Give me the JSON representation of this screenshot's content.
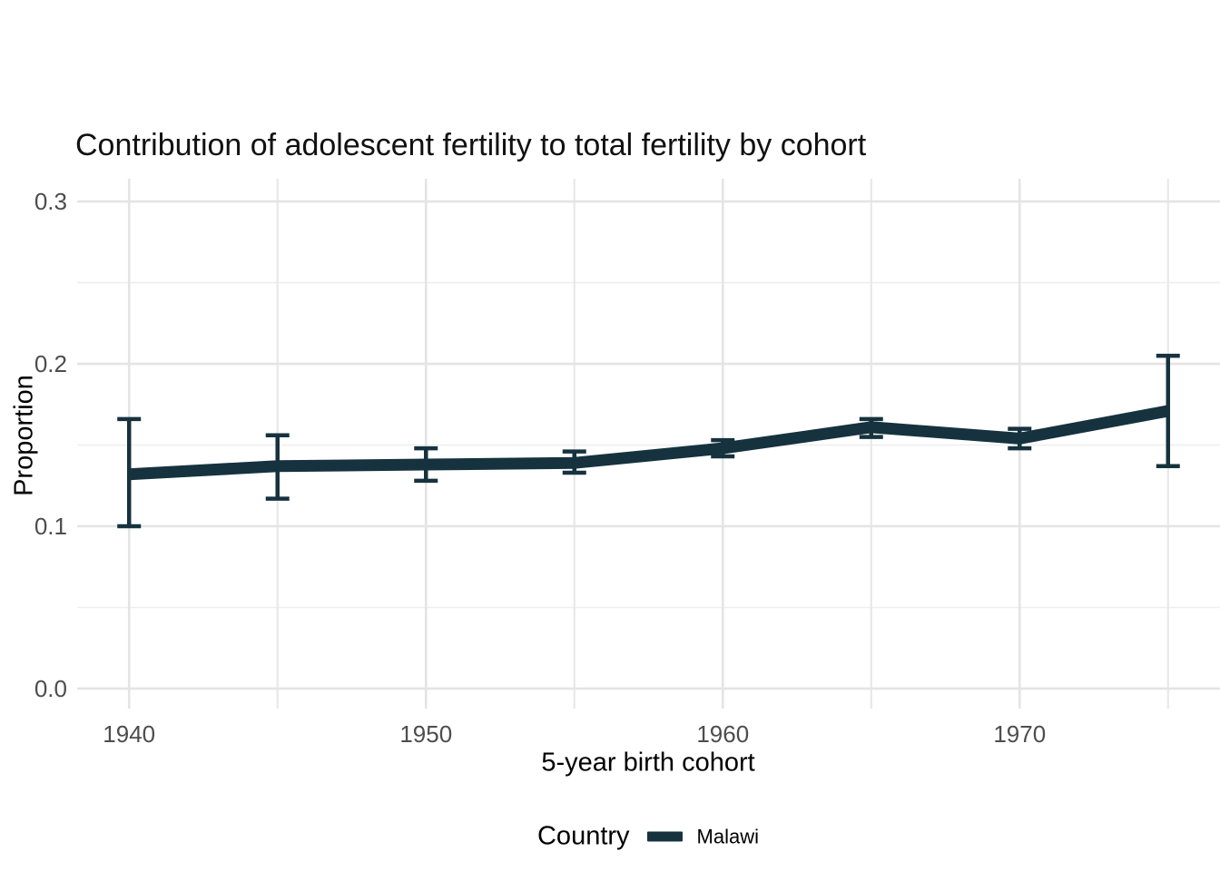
{
  "title": "Contribution of adolescent fertility to total fertility by cohort",
  "x_axis": {
    "label": "5-year birth cohort",
    "tick_labels": [
      "1940",
      "1950",
      "1960",
      "1970"
    ]
  },
  "y_axis": {
    "label": "Proportion",
    "tick_labels": [
      "0.0",
      "0.1",
      "0.2",
      "0.3"
    ]
  },
  "legend": {
    "title": "Country",
    "items": [
      {
        "label": "Malawi",
        "color": "#16323E"
      }
    ]
  },
  "colors": {
    "line": "#16323E",
    "grid_major": "#E4E4E4",
    "grid_minor_h": "#EFEFEF",
    "grid_minor_v": "#E8E8E8",
    "tick_text": "#4D4D4D",
    "background": "#FFFFFF"
  },
  "chart_data": {
    "type": "line",
    "title": "Contribution of adolescent fertility to total fertility by cohort",
    "xlabel": "5-year birth cohort",
    "ylabel": "Proportion",
    "x": [
      1940,
      1945,
      1950,
      1955,
      1960,
      1965,
      1970,
      1975
    ],
    "series": [
      {
        "name": "Malawi",
        "color": "#16323E",
        "values": [
          0.132,
          0.137,
          0.138,
          0.139,
          0.148,
          0.161,
          0.154,
          0.171
        ],
        "ci_lower": [
          0.1,
          0.117,
          0.128,
          0.133,
          0.143,
          0.155,
          0.148,
          0.137
        ],
        "ci_upper": [
          0.166,
          0.156,
          0.148,
          0.146,
          0.153,
          0.166,
          0.16,
          0.205
        ]
      }
    ],
    "xlim": [
      1938.25,
      1976.75
    ],
    "ylim": [
      -0.0123,
      0.314
    ],
    "x_major_ticks": [
      1940,
      1950,
      1960,
      1970
    ],
    "x_minor_ticks": [
      1945,
      1955,
      1965,
      1975
    ],
    "y_major_ticks": [
      0.0,
      0.1,
      0.2,
      0.3
    ],
    "y_minor_ticks": [
      0.05,
      0.15,
      0.25
    ],
    "error_bars": true,
    "grid": true,
    "legend_position": "bottom"
  }
}
